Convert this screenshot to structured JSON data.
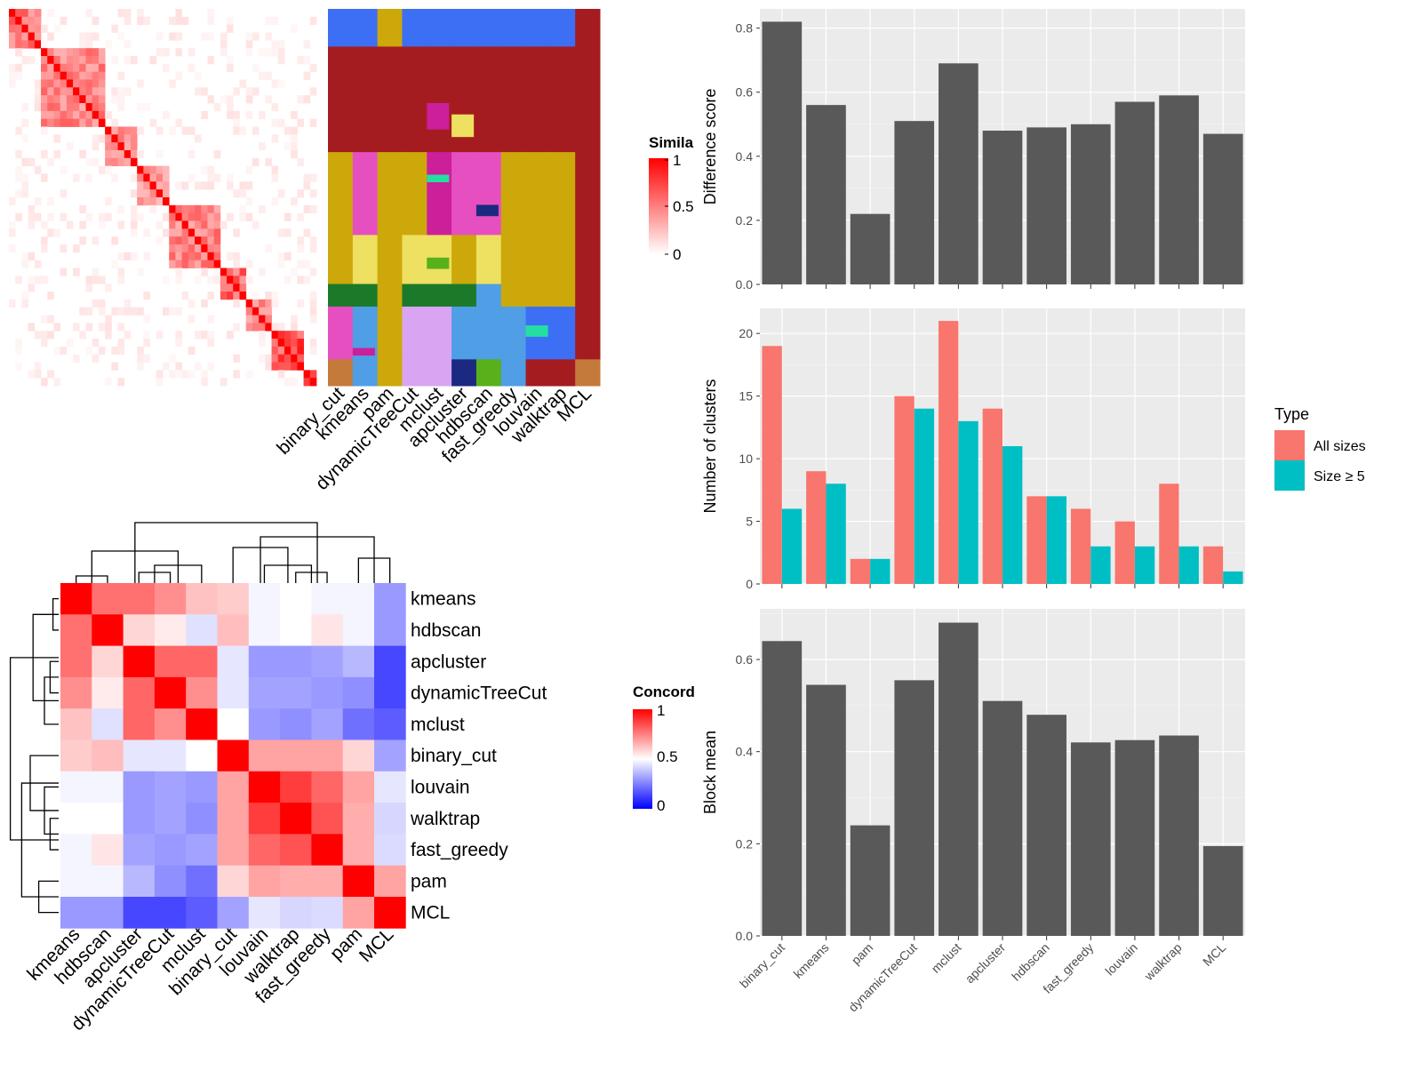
{
  "methods_rows": [
    "kmeans",
    "hdbscan",
    "apcluster",
    "dynamicTreeCut",
    "mclust",
    "binary_cut",
    "louvain",
    "walktrap",
    "fast_greedy",
    "pam",
    "MCL"
  ],
  "membership_methods": [
    "binary_cut",
    "kmeans",
    "pam",
    "dynamicTreeCut",
    "mclust",
    "apcluster",
    "hdbscan",
    "fast_greedy",
    "louvain",
    "walktrap",
    "MCL"
  ],
  "similarity_legend": {
    "title": "Simila",
    "ticks": [
      "1",
      "0.5",
      "0"
    ]
  },
  "concordance_legend": {
    "title": "Concord",
    "ticks": [
      "1",
      "0.5",
      "0"
    ]
  },
  "colors": {
    "bar_dark": "#595959",
    "panel_bg": "#ebebeb",
    "grid": "#ffffff",
    "all_sizes": "#f8766d",
    "size5": "#00bfc4",
    "sim_high": "#ff0000",
    "conc_low": "#0000ff"
  },
  "chart_data": [
    {
      "type": "heatmap",
      "name": "similarity",
      "title": "",
      "legend_title": "Simila",
      "range": [
        0,
        1
      ],
      "blocks": [
        0.6,
        0.55,
        0.5,
        0.45,
        0.55,
        0.7,
        0.5,
        0.8,
        0.9
      ]
    },
    {
      "type": "heatmap",
      "name": "membership",
      "columns": [
        "binary_cut",
        "kmeans",
        "pam",
        "dynamicTreeCut",
        "mclust",
        "apcluster",
        "hdbscan",
        "fast_greedy",
        "louvain",
        "walktrap",
        "MCL"
      ]
    },
    {
      "type": "heatmap",
      "name": "concordance",
      "legend_title": "Concord",
      "range": [
        0,
        1
      ],
      "rows": [
        "kmeans",
        "hdbscan",
        "apcluster",
        "dynamicTreeCut",
        "mclust",
        "binary_cut",
        "louvain",
        "walktrap",
        "fast_greedy",
        "pam",
        "MCL"
      ],
      "columns": [
        "kmeans",
        "hdbscan",
        "apcluster",
        "dynamicTreeCut",
        "mclust",
        "binary_cut",
        "louvain",
        "walktrap",
        "fast_greedy",
        "pam",
        "MCL"
      ],
      "values": [
        [
          1.0,
          0.78,
          0.78,
          0.72,
          0.62,
          0.6,
          0.48,
          0.5,
          0.48,
          0.48,
          0.3
        ],
        [
          0.78,
          1.0,
          0.58,
          0.54,
          0.44,
          0.63,
          0.48,
          0.5,
          0.55,
          0.48,
          0.3
        ],
        [
          0.78,
          0.58,
          1.0,
          0.8,
          0.8,
          0.45,
          0.3,
          0.3,
          0.32,
          0.36,
          0.14
        ],
        [
          0.72,
          0.54,
          0.8,
          1.0,
          0.72,
          0.45,
          0.32,
          0.32,
          0.3,
          0.28,
          0.14
        ],
        [
          0.62,
          0.44,
          0.8,
          0.72,
          1.0,
          0.5,
          0.3,
          0.28,
          0.32,
          0.22,
          0.18
        ],
        [
          0.6,
          0.63,
          0.45,
          0.45,
          0.5,
          1.0,
          0.68,
          0.68,
          0.68,
          0.58,
          0.32
        ],
        [
          0.48,
          0.48,
          0.3,
          0.32,
          0.3,
          0.68,
          1.0,
          0.88,
          0.8,
          0.68,
          0.45
        ],
        [
          0.5,
          0.5,
          0.3,
          0.32,
          0.28,
          0.68,
          0.88,
          1.0,
          0.84,
          0.66,
          0.42
        ],
        [
          0.48,
          0.55,
          0.32,
          0.3,
          0.32,
          0.68,
          0.8,
          0.84,
          1.0,
          0.66,
          0.43
        ],
        [
          0.48,
          0.48,
          0.36,
          0.28,
          0.22,
          0.58,
          0.68,
          0.66,
          0.66,
          1.0,
          0.68
        ],
        [
          0.3,
          0.3,
          0.14,
          0.14,
          0.18,
          0.32,
          0.45,
          0.42,
          0.43,
          0.68,
          1.0
        ]
      ]
    },
    {
      "type": "bar",
      "name": "difference",
      "categories": [
        "binary_cut",
        "kmeans",
        "pam",
        "dynamicTreeCut",
        "mclust",
        "apcluster",
        "hdbscan",
        "fast_greedy",
        "louvain",
        "walktrap",
        "MCL"
      ],
      "values": [
        0.82,
        0.56,
        0.22,
        0.51,
        0.69,
        0.48,
        0.49,
        0.5,
        0.57,
        0.59,
        0.47
      ],
      "ylabel": "Difference score",
      "ylim": [
        0,
        0.86
      ],
      "yticks": [
        "0.0",
        "0.2",
        "0.4",
        "0.6",
        "0.8"
      ],
      "grid": true
    },
    {
      "type": "bar",
      "name": "nclusters",
      "categories": [
        "binary_cut",
        "kmeans",
        "pam",
        "dynamicTreeCut",
        "mclust",
        "apcluster",
        "hdbscan",
        "fast_greedy",
        "louvain",
        "walktrap",
        "MCL"
      ],
      "series": [
        {
          "name": "All sizes",
          "values": [
            19,
            9,
            2,
            15,
            21,
            14,
            7,
            6,
            5,
            8,
            3
          ]
        },
        {
          "name": "Size ≥ 5",
          "values": [
            6,
            8,
            2,
            14,
            13,
            11,
            7,
            3,
            3,
            3,
            1
          ]
        }
      ],
      "ylabel": "Number of clusters",
      "ylim": [
        0,
        22
      ],
      "yticks": [
        "0",
        "5",
        "10",
        "15",
        "20"
      ],
      "legend_title": "Type",
      "legend_position": "right",
      "grid": true
    },
    {
      "type": "bar",
      "name": "blockmean",
      "categories": [
        "binary_cut",
        "kmeans",
        "pam",
        "dynamicTreeCut",
        "mclust",
        "apcluster",
        "hdbscan",
        "fast_greedy",
        "louvain",
        "walktrap",
        "MCL"
      ],
      "values": [
        0.64,
        0.545,
        0.24,
        0.555,
        0.68,
        0.51,
        0.48,
        0.42,
        0.425,
        0.435,
        0.195
      ],
      "ylabel": "Block mean",
      "ylim": [
        0,
        0.71
      ],
      "yticks": [
        "0.0",
        "0.2",
        "0.4",
        "0.6"
      ],
      "grid": true
    }
  ]
}
